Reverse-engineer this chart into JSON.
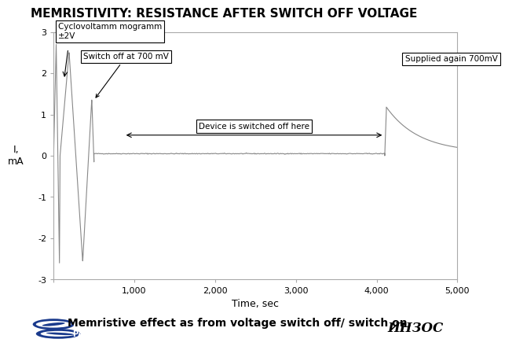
{
  "title": "MEMRISTIVITY: RESISTANCE AFTER SWITCH OFF VOLTAGE",
  "xlabel": "Time, sec",
  "ylabel": "I,\nmA",
  "xlim": [
    0,
    5000
  ],
  "ylim": [
    -3,
    3
  ],
  "xticks": [
    0,
    1000,
    2000,
    3000,
    4000,
    5000
  ],
  "yticks": [
    -3,
    -2,
    -1,
    0,
    1,
    2,
    3
  ],
  "bg_color": "#ffffff",
  "line_color": "#888888",
  "caption": "Memristive effect as from voltage switch off/ switch on.",
  "annotation_cyclo": "Cyclovoltamm mogramm\n±2V",
  "annotation_switchoff": "Switch off at 700 mV",
  "annotation_device": "Device is switched off here",
  "annotation_supplied": "Supplied again 700mV"
}
